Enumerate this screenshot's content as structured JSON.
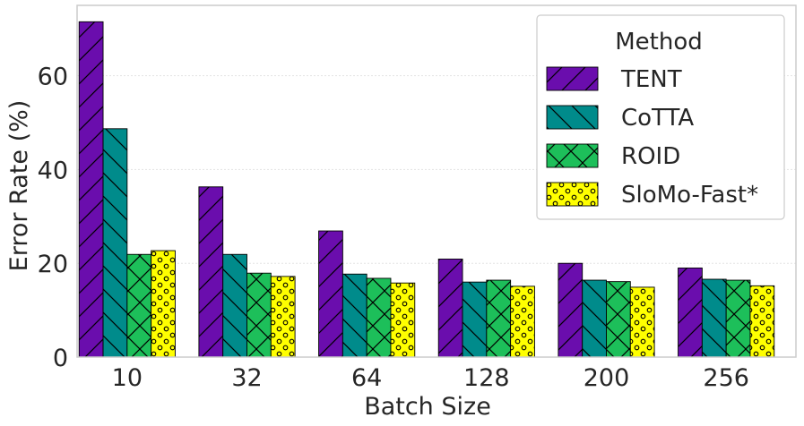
{
  "chart_data": {
    "type": "bar",
    "title": "",
    "xlabel": "Batch Size",
    "ylabel": "Error Rate (%)",
    "categories": [
      "10",
      "32",
      "64",
      "128",
      "200",
      "256"
    ],
    "ylim": [
      0,
      75
    ],
    "yticks": [
      0,
      20,
      40,
      60
    ],
    "grid": true,
    "legend": {
      "title": "Method",
      "position": "top-right"
    },
    "series": [
      {
        "name": "TENT",
        "color": "#6a0dad",
        "pattern": "diagonal",
        "values": [
          71.5,
          36.3,
          26.9,
          20.9,
          20.0,
          19.0
        ]
      },
      {
        "name": "CoTTA",
        "color": "#008b8b",
        "pattern": "backslash",
        "values": [
          48.7,
          21.9,
          17.7,
          16.0,
          16.4,
          16.6
        ]
      },
      {
        "name": "ROID",
        "color": "#1dbf5a",
        "pattern": "crosshatch",
        "values": [
          21.9,
          17.9,
          16.8,
          16.4,
          16.1,
          16.4
        ]
      },
      {
        "name": "SloMo-Fast*",
        "color": "#ffff00",
        "pattern": "circles",
        "values": [
          22.7,
          17.2,
          15.8,
          15.1,
          14.9,
          15.2
        ]
      }
    ]
  }
}
